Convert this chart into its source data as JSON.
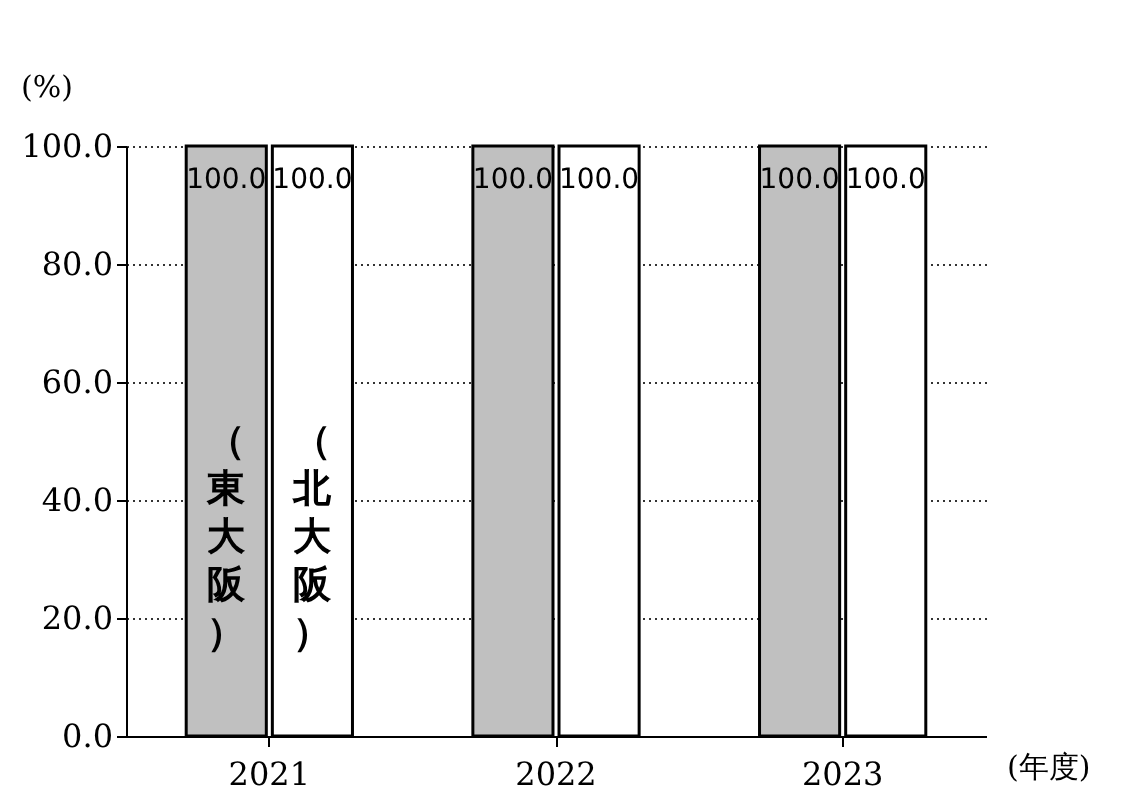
{
  "chart_data": {
    "type": "bar",
    "xlabel": "(年度)",
    "ylabel": "(%)",
    "categories": [
      "2021",
      "2022",
      "2023"
    ],
    "series": [
      {
        "name": "（東大阪）",
        "color": "#c0c0c0",
        "values": [
          100,
          100,
          100
        ],
        "value_labels": [
          "100.0",
          "100.0",
          "100.0"
        ]
      },
      {
        "name": "（北大阪）",
        "color": "#ffffff",
        "values": [
          100,
          100,
          100
        ],
        "value_labels": [
          "100.0",
          "100.0",
          "100.0"
        ]
      }
    ],
    "ylim": [
      0,
      100
    ],
    "yticks": [
      {
        "value": 0,
        "label": "0.0"
      },
      {
        "value": 20,
        "label": "20.0"
      },
      {
        "value": 40,
        "label": "40.0"
      },
      {
        "value": 60,
        "label": "60.0"
      },
      {
        "value": 80,
        "label": "80.0"
      },
      {
        "value": 100,
        "label": "100.0"
      }
    ],
    "grid": "y",
    "legend": false
  }
}
